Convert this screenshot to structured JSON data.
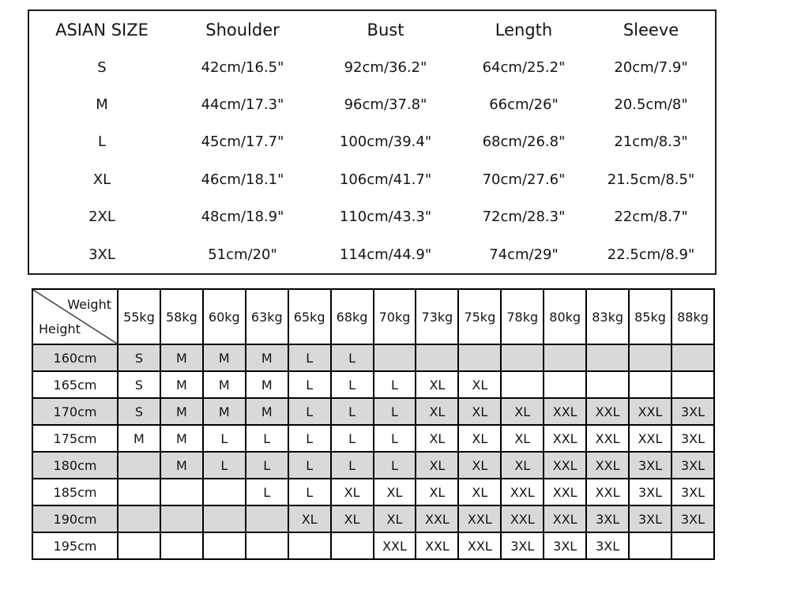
{
  "colors": {
    "background": "#ffffff",
    "grid_line": "#000000",
    "shaded_row": "#d9d9d9",
    "text": "#141414"
  },
  "chart_data": [
    {
      "type": "table",
      "title": "ASIAN SIZE",
      "columns": [
        "ASIAN SIZE",
        "Shoulder",
        "Bust",
        "Length",
        "Sleeve"
      ],
      "rows": [
        [
          "S",
          "42cm/16.5\"",
          "92cm/36.2\"",
          "64cm/25.2\"",
          "20cm/7.9\""
        ],
        [
          "M",
          "44cm/17.3\"",
          "96cm/37.8\"",
          "66cm/26\"",
          "20.5cm/8\""
        ],
        [
          "L",
          "45cm/17.7\"",
          "100cm/39.4\"",
          "68cm/26.8\"",
          "21cm/8.3\""
        ],
        [
          "XL",
          "46cm/18.1\"",
          "106cm/41.7\"",
          "70cm/27.6\"",
          "21.5cm/8.5\""
        ],
        [
          "2XL",
          "48cm/18.9\"",
          "110cm/43.3\"",
          "72cm/28.3\"",
          "22cm/8.7\""
        ],
        [
          "3XL",
          "51cm/20\"",
          "114cm/44.9\"",
          "74cm/29\"",
          "22.5cm/8.9\""
        ]
      ]
    },
    {
      "type": "table",
      "title": "Height / Weight size matrix",
      "corner_top_label": "Weight",
      "corner_bottom_label": "Height",
      "weight_columns": [
        "55kg",
        "58kg",
        "60kg",
        "63kg",
        "65kg",
        "68kg",
        "70kg",
        "73kg",
        "75kg",
        "78kg",
        "80kg",
        "83kg",
        "85kg",
        "88kg"
      ],
      "height_rows": [
        "160cm",
        "165cm",
        "170cm",
        "175cm",
        "180cm",
        "185cm",
        "190cm",
        "195cm"
      ],
      "cells": [
        [
          "S",
          "M",
          "M",
          "M",
          "L",
          "L",
          "",
          "",
          "",
          "",
          "",
          "",
          "",
          ""
        ],
        [
          "S",
          "M",
          "M",
          "M",
          "L",
          "L",
          "L",
          "XL",
          "XL",
          "",
          "",
          "",
          "",
          ""
        ],
        [
          "S",
          "M",
          "M",
          "M",
          "L",
          "L",
          "L",
          "XL",
          "XL",
          "XL",
          "XXL",
          "XXL",
          "XXL",
          "3XL"
        ],
        [
          "M",
          "M",
          "L",
          "L",
          "L",
          "L",
          "L",
          "XL",
          "XL",
          "XL",
          "XXL",
          "XXL",
          "XXL",
          "3XL"
        ],
        [
          "",
          "M",
          "L",
          "L",
          "L",
          "L",
          "L",
          "XL",
          "XL",
          "XL",
          "XXL",
          "XXL",
          "3XL",
          "3XL"
        ],
        [
          "",
          "",
          "",
          "L",
          "L",
          "XL",
          "XL",
          "XL",
          "XL",
          "XXL",
          "XXL",
          "XXL",
          "3XL",
          "3XL"
        ],
        [
          "",
          "",
          "",
          "",
          "XL",
          "XL",
          "XL",
          "XXL",
          "XXL",
          "XXL",
          "XXL",
          "3XL",
          "3XL",
          "3XL"
        ],
        [
          "",
          "",
          "",
          "",
          "",
          "",
          "XXL",
          "XXL",
          "XXL",
          "3XL",
          "3XL",
          "3XL",
          "",
          ""
        ]
      ],
      "shaded_rows": [
        "160cm",
        "170cm",
        "180cm",
        "190cm"
      ]
    }
  ]
}
